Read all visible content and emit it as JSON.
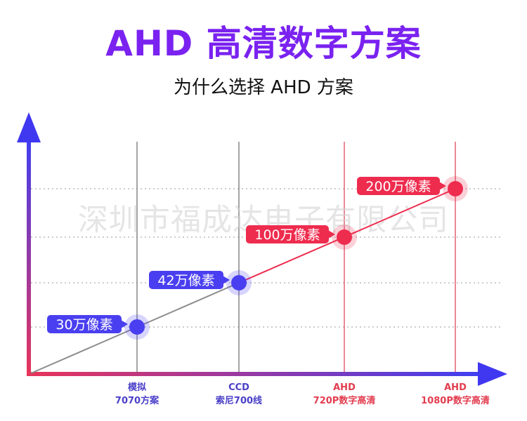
{
  "title": "AHD 高清数字方案",
  "subtitle": "为什么选择 AHD 方案",
  "watermark": "深圳市福成达电子有限公司",
  "colors": {
    "title": "#7a22f0",
    "blue": "#4a3ff0",
    "red": "#ee2c4e",
    "gray_line": "#8c8c8c"
  },
  "chart_data": {
    "type": "line",
    "title": "",
    "xlabel": "",
    "ylabel": "",
    "grid": true,
    "categories": [
      {
        "line1": "模拟",
        "line2": "7070方案",
        "color": "blue"
      },
      {
        "line1": "CCD",
        "line2": "索尼700线",
        "color": "blue"
      },
      {
        "line1": "AHD",
        "line2": "720P数字高清",
        "color": "red"
      },
      {
        "line1": "AHD",
        "line2": "1080P数字高清",
        "color": "red"
      }
    ],
    "points": [
      {
        "label": "30万像素",
        "value": 30,
        "color": "blue"
      },
      {
        "label": "42万像素",
        "value": 42,
        "color": "blue"
      },
      {
        "label": "100万像素",
        "value": 100,
        "color": "red"
      },
      {
        "label": "200万像素",
        "value": 200,
        "color": "red"
      }
    ]
  }
}
